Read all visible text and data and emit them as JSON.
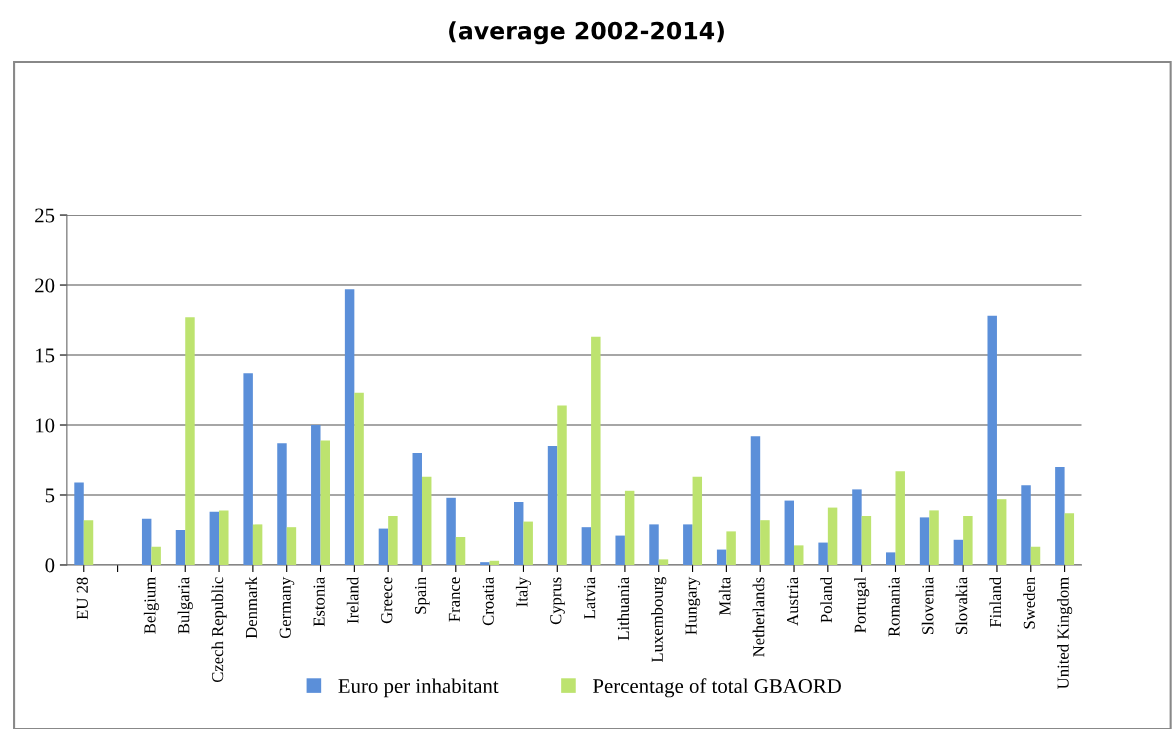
{
  "chart_data": {
    "type": "bar",
    "title": "(average 2002-2014)",
    "categories": [
      "EU 28",
      null,
      "Belgium",
      "Bulgaria",
      "Czech Republic",
      "Denmark",
      "Germany",
      "Estonia",
      "Ireland",
      "Greece",
      "Spain",
      "France",
      "Croatia",
      "Italy",
      "Cyprus",
      "Latvia",
      "Lithuania",
      "Luxembourg",
      "Hungary",
      "Malta",
      "Netherlands",
      "Austria",
      "Poland",
      "Portugal",
      "Romania",
      "Slovenia",
      "Slovakia",
      "Finland",
      "Sweden",
      "United Kingdom"
    ],
    "series": [
      {
        "name": "Euro per inhabitant",
        "color": "#5b8fd9",
        "values": [
          5.9,
          null,
          3.3,
          2.5,
          3.8,
          13.7,
          8.7,
          10.0,
          19.7,
          2.6,
          8.0,
          4.8,
          0.2,
          4.5,
          8.5,
          2.7,
          2.1,
          2.9,
          2.9,
          1.1,
          9.2,
          4.6,
          1.6,
          5.4,
          0.9,
          3.4,
          1.8,
          17.8,
          5.7,
          7.0
        ]
      },
      {
        "name": "Percentage of total GBAORD",
        "color": "#bde36f",
        "values": [
          3.2,
          null,
          1.3,
          17.7,
          3.9,
          2.9,
          2.7,
          8.9,
          12.3,
          3.5,
          6.3,
          2.0,
          0.3,
          3.1,
          11.4,
          16.3,
          5.3,
          0.4,
          6.3,
          2.4,
          3.2,
          1.4,
          4.1,
          3.5,
          6.7,
          3.9,
          3.5,
          4.7,
          1.3,
          3.7
        ]
      }
    ],
    "ylim": [
      0,
      25
    ],
    "yticks": [
      0,
      5,
      10,
      15,
      20,
      25
    ],
    "grid": "y",
    "legend": "bottom"
  }
}
